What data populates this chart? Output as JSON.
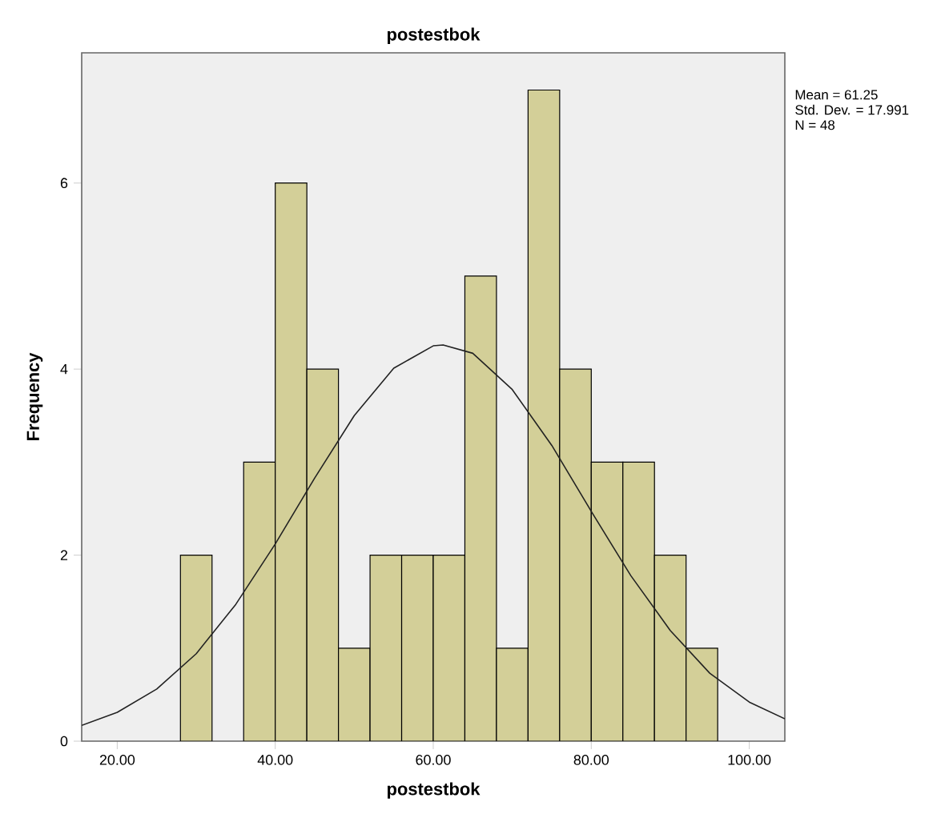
{
  "chart_data": {
    "type": "histogram",
    "title": "postestbok",
    "xlabel": "postestbok",
    "ylabel": "Frequency",
    "bins": [
      28,
      32,
      36,
      40,
      44,
      48,
      52,
      56,
      60,
      64,
      68,
      72,
      76,
      80,
      84,
      88,
      92,
      96
    ],
    "values": [
      2,
      0,
      3,
      6,
      4,
      1,
      2,
      2,
      2,
      5,
      1,
      7,
      4,
      3,
      3,
      2,
      1
    ],
    "color": "#d3cf98",
    "xlim": [
      15.5,
      104.5
    ],
    "ylim": [
      0,
      7.4
    ],
    "xticks": [
      {
        "value": 20,
        "label": "20.00"
      },
      {
        "value": 40,
        "label": "40.00"
      },
      {
        "value": 60,
        "label": "60.00"
      },
      {
        "value": 80,
        "label": "80.00"
      },
      {
        "value": 100,
        "label": "100.00"
      }
    ],
    "yticks": [
      0,
      2,
      4,
      6
    ],
    "series": [
      {
        "type": "line",
        "color": "#222222",
        "x": [
          15.5,
          20,
          25,
          30,
          35,
          40,
          45,
          50,
          55,
          60,
          61.25,
          65,
          70,
          75,
          80,
          85,
          90,
          95,
          100,
          104.5
        ],
        "values": [
          0.17,
          0.31,
          0.56,
          0.94,
          1.47,
          2.12,
          2.83,
          3.5,
          4.01,
          4.25,
          4.26,
          4.17,
          3.78,
          3.18,
          2.47,
          1.78,
          1.19,
          0.73,
          0.42,
          0.24
        ]
      }
    ],
    "annotations": [
      "Mean = 61.25",
      "Std. Dev. = 17.991",
      "N = 48"
    ],
    "grid": false
  }
}
